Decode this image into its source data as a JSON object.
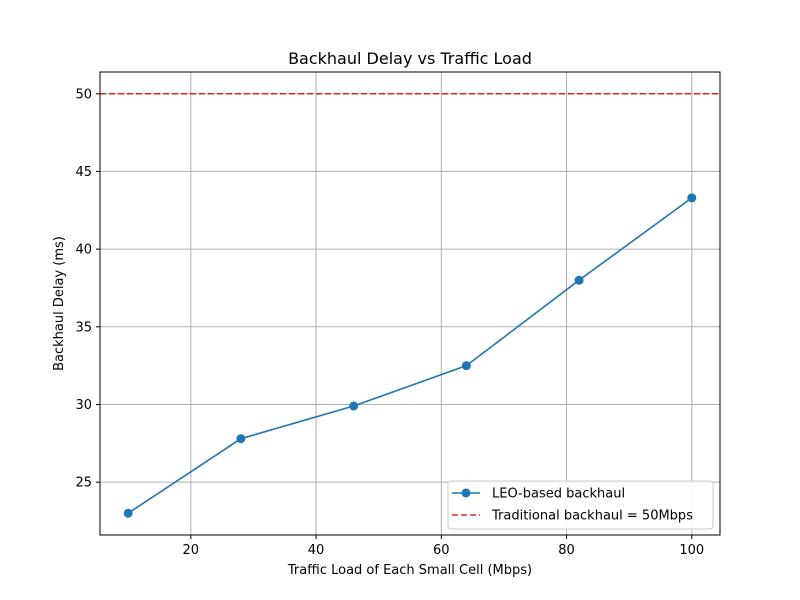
{
  "chart_data": {
    "type": "line",
    "title": "Backhaul Delay vs Traffic Load",
    "xlabel": "Traffic Load of Each Small Cell (Mbps)",
    "ylabel": "Backhaul Delay (ms)",
    "xlim": [
      5.5,
      104.5
    ],
    "ylim": [
      21.6,
      51.4
    ],
    "xticks": [
      20,
      40,
      60,
      80,
      100
    ],
    "yticks": [
      25,
      30,
      35,
      40,
      45,
      50
    ],
    "grid": true,
    "legend_position": "lower-right",
    "series": [
      {
        "name": "LEO-based backhaul",
        "color": "#1f77b4",
        "marker": "circle",
        "x": [
          10,
          28,
          46,
          64,
          82,
          100
        ],
        "y": [
          23.0,
          27.8,
          29.9,
          32.5,
          38.0,
          43.3
        ]
      }
    ],
    "reference_lines": [
      {
        "name": "Traditional backhaul = 50Mbps",
        "orientation": "horizontal",
        "y": 50,
        "color": "#d62728",
        "style": "dashed"
      }
    ]
  }
}
